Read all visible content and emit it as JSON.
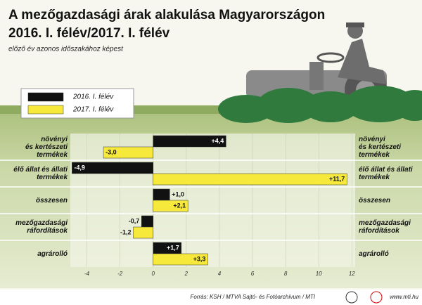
{
  "chart_data": {
    "type": "bar",
    "orientation": "horizontal",
    "title": "A mezőgazdasági árak alakulása Magyarországon",
    "subtitle": "2016. I. félév/2017. I. félév",
    "note": "előző év azonos időszakához képest",
    "categories": [
      "növényi\nés kertészeti\ntermékek",
      "élő állat és állati\ntermékek",
      "összesen",
      "mezőgazdasági\nráfordítások",
      "agrárolló"
    ],
    "series": [
      {
        "name": "2016. I. félév",
        "color": "#111111",
        "values": [
          4.4,
          -4.9,
          1.0,
          -0.7,
          1.7
        ],
        "value_labels": [
          "+4,4",
          "-4,9",
          "+1,0",
          "-0,7",
          "+1,7"
        ]
      },
      {
        "name": "2017. I. félév",
        "color": "#f6e93c",
        "values": [
          -3.0,
          11.7,
          2.1,
          -1.2,
          3.3
        ],
        "value_labels": [
          "-3,0",
          "+11,7",
          "+2,1",
          "-1,2",
          "+3,3"
        ]
      }
    ],
    "xlim": [
      -5,
      12.2
    ],
    "xticks": [
      -4,
      -2,
      0,
      2,
      4,
      6,
      8,
      10,
      12
    ],
    "grid": true,
    "source": "Forrás: KSH / MTVA Sajtó- és Fotóarchívum / MTI",
    "website": "www.mti.hu"
  }
}
